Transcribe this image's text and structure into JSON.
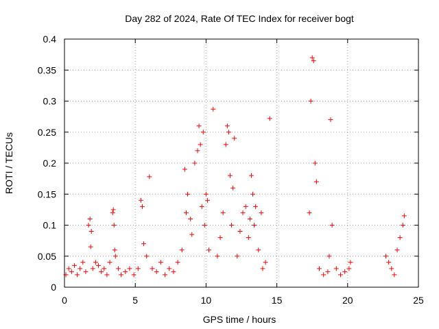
{
  "chart_data": {
    "type": "scatter",
    "title": "Day 282 of 2024, Rate Of TEC Index for receiver bogt",
    "xlabel": "GPS time / hours",
    "ylabel": "ROTI / TECUs",
    "xlim": [
      0,
      25
    ],
    "ylim": [
      0,
      0.4
    ],
    "xticks": [
      "0",
      "5",
      "10",
      "15",
      "20",
      "25"
    ],
    "yticks": [
      "0",
      "0.05",
      "0.1",
      "0.15",
      "0.2",
      "0.25",
      "0.3",
      "0.35",
      "0.4"
    ],
    "grid": true,
    "legend": "none",
    "marker": "plus",
    "color": "#ff0000",
    "series": [
      {
        "x": [
          0.1,
          0.3,
          0.5,
          0.7,
          0.9,
          1.1,
          1.3,
          1.5,
          1.7,
          1.8,
          1.85,
          1.9,
          2.0,
          2.2,
          2.4,
          2.6,
          2.8,
          3.0,
          3.2,
          3.4,
          3.45,
          3.5,
          3.55,
          3.6,
          3.8,
          4.0,
          4.3,
          4.6,
          4.9,
          5.2,
          5.4,
          5.5,
          5.6,
          5.8,
          6.0,
          6.2,
          6.5,
          6.8,
          7.1,
          7.4,
          7.7,
          8.0,
          8.3,
          8.5,
          8.6,
          8.7,
          8.9,
          9.0,
          9.2,
          9.4,
          9.5,
          9.6,
          9.7,
          9.8,
          9.9,
          10.0,
          10.1,
          10.2,
          10.5,
          10.8,
          11.0,
          11.2,
          11.4,
          11.5,
          11.6,
          11.7,
          11.8,
          11.9,
          12.0,
          12.2,
          12.4,
          12.6,
          12.8,
          13.0,
          13.1,
          13.2,
          13.3,
          13.4,
          13.5,
          13.7,
          13.9,
          14.0,
          14.2,
          14.5,
          17.3,
          17.4,
          17.5,
          17.6,
          17.7,
          17.8,
          18.0,
          18.3,
          18.6,
          18.7,
          18.8,
          18.9,
          19.2,
          19.5,
          19.8,
          20.1,
          20.2,
          22.7,
          22.9,
          23.1,
          23.3,
          23.5,
          23.7,
          23.9,
          24.0
        ],
        "y": [
          0.02,
          0.03,
          0.025,
          0.035,
          0.02,
          0.03,
          0.04,
          0.025,
          0.1,
          0.11,
          0.065,
          0.09,
          0.03,
          0.04,
          0.035,
          0.025,
          0.03,
          0.02,
          0.04,
          0.12,
          0.125,
          0.1,
          0.06,
          0.05,
          0.03,
          0.02,
          0.025,
          0.03,
          0.02,
          0.03,
          0.14,
          0.13,
          0.07,
          0.05,
          0.178,
          0.03,
          0.025,
          0.04,
          0.02,
          0.03,
          0.025,
          0.04,
          0.06,
          0.19,
          0.12,
          0.15,
          0.11,
          0.085,
          0.2,
          0.22,
          0.26,
          0.23,
          0.13,
          0.25,
          0.1,
          0.15,
          0.14,
          0.06,
          0.287,
          0.05,
          0.08,
          0.12,
          0.23,
          0.26,
          0.25,
          0.18,
          0.1,
          0.16,
          0.24,
          0.05,
          0.09,
          0.12,
          0.13,
          0.08,
          0.11,
          0.18,
          0.15,
          0.1,
          0.13,
          0.06,
          0.12,
          0.03,
          0.04,
          0.272,
          0.12,
          0.3,
          0.37,
          0.365,
          0.2,
          0.17,
          0.03,
          0.02,
          0.025,
          0.05,
          0.27,
          0.1,
          0.03,
          0.02,
          0.025,
          0.03,
          0.04,
          0.05,
          0.04,
          0.03,
          0.02,
          0.06,
          0.08,
          0.1,
          0.115
        ]
      }
    ]
  }
}
